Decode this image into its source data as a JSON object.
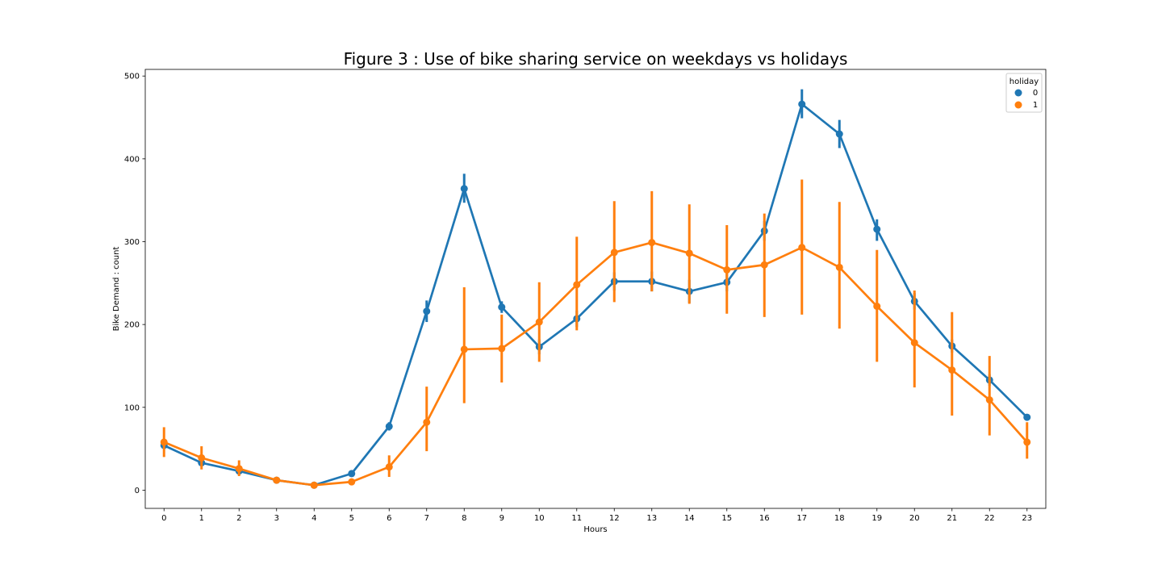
{
  "chart_data": {
    "type": "line",
    "title": "Figure 3 : Use of bike sharing service on weekdays vs holidays",
    "xlabel": "Hours",
    "ylabel": "Bike Demand : count",
    "categories": [
      "0",
      "1",
      "2",
      "3",
      "4",
      "5",
      "6",
      "7",
      "8",
      "9",
      "10",
      "11",
      "12",
      "13",
      "14",
      "15",
      "16",
      "17",
      "18",
      "19",
      "20",
      "21",
      "22",
      "23"
    ],
    "ylim": [
      -22,
      508
    ],
    "yticks": [
      0,
      100,
      200,
      300,
      400,
      500
    ],
    "grid": false,
    "legend": {
      "title": "holiday",
      "placement": "top-right"
    },
    "series": [
      {
        "name": "0",
        "color": "#1f77b4",
        "values": [
          54,
          33,
          23,
          12,
          6,
          20,
          77,
          216,
          364,
          221,
          173,
          207,
          252,
          252,
          240,
          251,
          313,
          466,
          430,
          315,
          228,
          174,
          133,
          88
        ],
        "ci_low": [
          50,
          30,
          20,
          10,
          5,
          18,
          72,
          203,
          347,
          214,
          164,
          197,
          241,
          240,
          226,
          240,
          301,
          449,
          413,
          301,
          218,
          166,
          126,
          84
        ],
        "ci_high": [
          58,
          36,
          26,
          14,
          7,
          22,
          82,
          229,
          382,
          228,
          182,
          217,
          263,
          264,
          254,
          262,
          325,
          484,
          447,
          327,
          238,
          182,
          140,
          92
        ]
      },
      {
        "name": "1",
        "color": "#ff7f0e",
        "values": [
          58,
          39,
          26,
          12,
          6,
          10,
          28,
          82,
          170,
          171,
          203,
          248,
          287,
          299,
          286,
          266,
          272,
          293,
          269,
          222,
          178,
          145,
          109,
          58
        ],
        "ci_low": [
          40,
          25,
          17,
          8,
          4,
          6,
          16,
          47,
          105,
          130,
          155,
          193,
          227,
          240,
          225,
          213,
          209,
          212,
          195,
          155,
          124,
          90,
          66,
          38
        ],
        "ci_high": [
          76,
          53,
          36,
          16,
          8,
          14,
          42,
          125,
          245,
          212,
          251,
          306,
          349,
          361,
          345,
          320,
          334,
          375,
          348,
          290,
          241,
          215,
          162,
          82
        ]
      }
    ]
  }
}
